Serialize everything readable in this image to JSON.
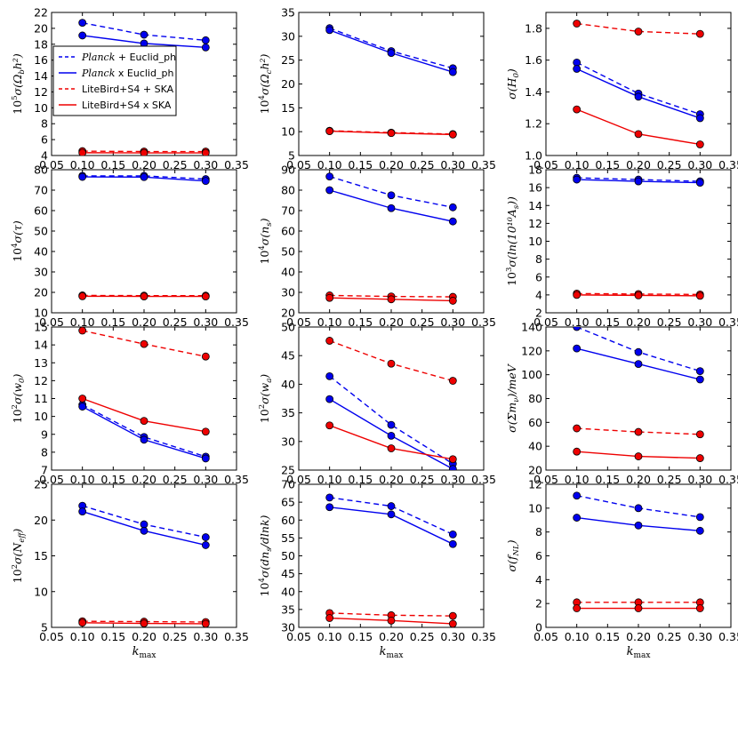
{
  "legend": {
    "entries": [
      {
        "label": "Planck + Euclid_ph",
        "italic_prefix": "Planck",
        "suffix": " + Euclid_ph",
        "style": "dashed",
        "color": "#0000ee"
      },
      {
        "label": "Planck x Euclid_ph",
        "italic_prefix": "Planck",
        "suffix": " x Euclid_ph",
        "style": "solid",
        "color": "#0000ee"
      },
      {
        "label": "LiteBird+S4 + SKA",
        "italic_prefix": "",
        "suffix": "LiteBird+S4 + SKA",
        "style": "dashed",
        "color": "#ee0000"
      },
      {
        "label": "LiteBird+S4 x SKA",
        "italic_prefix": "",
        "suffix": "LiteBird+S4 x SKA",
        "style": "solid",
        "color": "#ee0000"
      }
    ]
  },
  "colors": {
    "blue": "#0000ee",
    "red": "#ee0000",
    "marker_edge": "#000000"
  },
  "chart_data": [
    {
      "type": "line",
      "ylabel_prefix": "10",
      "ylabel_exp": "5",
      "ylabel_body": "σ(Ω",
      "ylabel_sub": "b",
      "ylabel_tail": "h²)",
      "xlabel": "k_max",
      "xlim": [
        0.05,
        0.35
      ],
      "ylim": [
        4,
        22
      ],
      "xticks": [
        "0.05",
        "0.10",
        "0.15",
        "0.20",
        "0.25",
        "0.30",
        "0.35"
      ],
      "yticks": [
        "4",
        "6",
        "8",
        "10",
        "12",
        "14",
        "16",
        "18",
        "20",
        "22"
      ],
      "ytick_values": [
        4,
        6,
        8,
        10,
        12,
        14,
        16,
        18,
        20,
        22
      ],
      "x": [
        0.1,
        0.2,
        0.3
      ],
      "series": [
        {
          "name": "Planck + Euclid_ph",
          "values": [
            20.7,
            19.2,
            18.5
          ]
        },
        {
          "name": "Planck x Euclid_ph",
          "values": [
            19.1,
            18.1,
            17.6
          ]
        },
        {
          "name": "LiteBird+S4 + SKA",
          "values": [
            4.55,
            4.5,
            4.5
          ]
        },
        {
          "name": "LiteBird+S4 x SKA",
          "values": [
            4.35,
            4.33,
            4.33
          ]
        }
      ]
    },
    {
      "type": "line",
      "ylabel_prefix": "10",
      "ylabel_exp": "4",
      "ylabel_body": "σ(Ω",
      "ylabel_sub": "c",
      "ylabel_tail": "h²)",
      "xlabel": "k_max",
      "xlim": [
        0.05,
        0.35
      ],
      "ylim": [
        5,
        35
      ],
      "xticks": [
        "0.05",
        "0.10",
        "0.15",
        "0.20",
        "0.25",
        "0.30",
        "0.35"
      ],
      "yticks": [
        "5",
        "10",
        "15",
        "20",
        "25",
        "30",
        "35"
      ],
      "ytick_values": [
        5,
        10,
        15,
        20,
        25,
        30,
        35
      ],
      "x": [
        0.1,
        0.2,
        0.3
      ],
      "series": [
        {
          "name": "Planck + Euclid_ph",
          "values": [
            31.7,
            26.9,
            23.3
          ]
        },
        {
          "name": "Planck x Euclid_ph",
          "values": [
            31.3,
            26.5,
            22.5
          ]
        },
        {
          "name": "LiteBird+S4 + SKA",
          "values": [
            10.2,
            9.8,
            9.5
          ]
        },
        {
          "name": "LiteBird+S4 x SKA",
          "values": [
            10.1,
            9.7,
            9.4
          ]
        }
      ]
    },
    {
      "type": "line",
      "ylabel_prefix": "",
      "ylabel_exp": "",
      "ylabel_body": "σ(H",
      "ylabel_sub": "0",
      "ylabel_tail": ")",
      "xlabel": "k_max",
      "xlim": [
        0.05,
        0.35
      ],
      "ylim": [
        1.0,
        1.9
      ],
      "xticks": [
        "0.05",
        "0.10",
        "0.15",
        "0.20",
        "0.25",
        "0.30",
        "0.35"
      ],
      "yticks": [
        "1.0",
        "1.2",
        "1.4",
        "1.6",
        "1.8"
      ],
      "ytick_values": [
        1.0,
        1.2,
        1.4,
        1.6,
        1.8
      ],
      "x": [
        0.1,
        0.2,
        0.3
      ],
      "series": [
        {
          "name": "Planck + Euclid_ph",
          "values": [
            1.585,
            1.39,
            1.26
          ]
        },
        {
          "name": "Planck x Euclid_ph",
          "values": [
            1.545,
            1.37,
            1.235
          ]
        },
        {
          "name": "LiteBird+S4 + SKA",
          "values": [
            1.83,
            1.78,
            1.765
          ]
        },
        {
          "name": "LiteBird+S4 x SKA",
          "values": [
            1.29,
            1.135,
            1.07
          ]
        }
      ]
    },
    {
      "type": "line",
      "ylabel_prefix": "10",
      "ylabel_exp": "4",
      "ylabel_body": "σ(τ)",
      "ylabel_sub": "",
      "ylabel_tail": "",
      "xlabel": "k_max",
      "xlim": [
        0.05,
        0.35
      ],
      "ylim": [
        10,
        80
      ],
      "xticks": [
        "0.05",
        "0.10",
        "0.15",
        "0.20",
        "0.25",
        "0.30",
        "0.35"
      ],
      "yticks": [
        "10",
        "20",
        "30",
        "40",
        "50",
        "60",
        "70",
        "80"
      ],
      "ytick_values": [
        10,
        20,
        30,
        40,
        50,
        60,
        70,
        80
      ],
      "x": [
        0.1,
        0.2,
        0.3
      ],
      "series": [
        {
          "name": "Planck + Euclid_ph",
          "values": [
            77.0,
            77.0,
            75.4
          ]
        },
        {
          "name": "Planck x Euclid_ph",
          "values": [
            76.5,
            76.4,
            74.5
          ]
        },
        {
          "name": "LiteBird+S4 + SKA",
          "values": [
            18.5,
            18.4,
            18.4
          ]
        },
        {
          "name": "LiteBird+S4 x SKA",
          "values": [
            18.1,
            18.0,
            18.0
          ]
        }
      ]
    },
    {
      "type": "line",
      "ylabel_prefix": "10",
      "ylabel_exp": "4",
      "ylabel_body": "σ(n",
      "ylabel_sub": "s",
      "ylabel_tail": ")",
      "xlabel": "k_max",
      "xlim": [
        0.05,
        0.35
      ],
      "ylim": [
        20,
        90
      ],
      "xticks": [
        "0.05",
        "0.10",
        "0.15",
        "0.20",
        "0.25",
        "0.30",
        "0.35"
      ],
      "yticks": [
        "20",
        "30",
        "40",
        "50",
        "60",
        "70",
        "80",
        "90"
      ],
      "ytick_values": [
        20,
        30,
        40,
        50,
        60,
        70,
        80,
        90
      ],
      "x": [
        0.1,
        0.2,
        0.3
      ],
      "series": [
        {
          "name": "Planck + Euclid_ph",
          "values": [
            86.7,
            77.5,
            71.6
          ]
        },
        {
          "name": "Planck x Euclid_ph",
          "values": [
            80.0,
            71.2,
            64.7
          ]
        },
        {
          "name": "LiteBird+S4 + SKA",
          "values": [
            28.5,
            28.0,
            27.8
          ]
        },
        {
          "name": "LiteBird+S4 x SKA",
          "values": [
            27.3,
            26.6,
            25.9
          ]
        }
      ]
    },
    {
      "type": "line",
      "ylabel_prefix": "10",
      "ylabel_exp": "3",
      "ylabel_body": "σ(ln(10¹⁰A",
      "ylabel_sub": "s",
      "ylabel_tail": "))",
      "xlabel": "k_max",
      "xlim": [
        0.05,
        0.35
      ],
      "ylim": [
        2,
        18
      ],
      "xticks": [
        "0.05",
        "0.10",
        "0.15",
        "0.20",
        "0.25",
        "0.30",
        "0.35"
      ],
      "yticks": [
        "2",
        "4",
        "6",
        "8",
        "10",
        "12",
        "14",
        "16",
        "18"
      ],
      "ytick_values": [
        2,
        4,
        6,
        8,
        10,
        12,
        14,
        16,
        18
      ],
      "x": [
        0.1,
        0.2,
        0.3
      ],
      "series": [
        {
          "name": "Planck + Euclid_ph",
          "values": [
            17.1,
            16.9,
            16.7
          ]
        },
        {
          "name": "Planck x Euclid_ph",
          "values": [
            16.9,
            16.7,
            16.55
          ]
        },
        {
          "name": "LiteBird+S4 + SKA",
          "values": [
            4.15,
            4.1,
            4.05
          ]
        },
        {
          "name": "LiteBird+S4 x SKA",
          "values": [
            4.0,
            3.95,
            3.9
          ]
        }
      ]
    },
    {
      "type": "line",
      "ylabel_prefix": "10",
      "ylabel_exp": "2",
      "ylabel_body": "σ(w",
      "ylabel_sub": "0",
      "ylabel_tail": ")",
      "xlabel": "k_max",
      "xlim": [
        0.05,
        0.35
      ],
      "ylim": [
        7,
        15
      ],
      "xticks": [
        "0.05",
        "0.10",
        "0.15",
        "0.20",
        "0.25",
        "0.30",
        "0.35"
      ],
      "yticks": [
        "7",
        "8",
        "9",
        "10",
        "11",
        "12",
        "13",
        "14",
        "15"
      ],
      "ytick_values": [
        7,
        8,
        9,
        10,
        11,
        12,
        13,
        14,
        15
      ],
      "x": [
        0.1,
        0.2,
        0.3
      ],
      "series": [
        {
          "name": "Planck + Euclid_ph",
          "values": [
            10.65,
            8.85,
            7.75
          ]
        },
        {
          "name": "Planck x Euclid_ph",
          "values": [
            10.55,
            8.7,
            7.65
          ]
        },
        {
          "name": "LiteBird+S4 + SKA",
          "values": [
            14.8,
            14.05,
            13.35
          ]
        },
        {
          "name": "LiteBird+S4 x SKA",
          "values": [
            11.0,
            9.75,
            9.15
          ]
        }
      ]
    },
    {
      "type": "line",
      "ylabel_prefix": "10",
      "ylabel_exp": "2",
      "ylabel_body": "σ(w",
      "ylabel_sub": "a",
      "ylabel_tail": ")",
      "xlabel": "k_max",
      "xlim": [
        0.05,
        0.35
      ],
      "ylim": [
        25,
        50
      ],
      "xticks": [
        "0.05",
        "0.10",
        "0.15",
        "0.20",
        "0.25",
        "0.30",
        "0.35"
      ],
      "yticks": [
        "25",
        "30",
        "35",
        "40",
        "45",
        "50"
      ],
      "ytick_values": [
        25,
        30,
        35,
        40,
        45,
        50
      ],
      "x": [
        0.1,
        0.2,
        0.3
      ],
      "series": [
        {
          "name": "Planck + Euclid_ph",
          "values": [
            41.4,
            32.9,
            26.1
          ]
        },
        {
          "name": "Planck x Euclid_ph",
          "values": [
            37.4,
            31.0,
            25.2
          ]
        },
        {
          "name": "LiteBird+S4 + SKA",
          "values": [
            47.6,
            43.6,
            40.6
          ]
        },
        {
          "name": "LiteBird+S4 x SKA",
          "values": [
            32.8,
            28.8,
            26.9
          ]
        }
      ]
    },
    {
      "type": "line",
      "ylabel_prefix": "",
      "ylabel_exp": "",
      "ylabel_body": "σ(Σm",
      "ylabel_sub": "ν",
      "ylabel_tail": ")/meV",
      "xlabel": "k_max",
      "xlim": [
        0.05,
        0.35
      ],
      "ylim": [
        20,
        140
      ],
      "xticks": [
        "0.05",
        "0.10",
        "0.15",
        "0.20",
        "0.25",
        "0.30",
        "0.35"
      ],
      "yticks": [
        "20",
        "40",
        "60",
        "80",
        "100",
        "120",
        "140"
      ],
      "ytick_values": [
        20,
        40,
        60,
        80,
        100,
        120,
        140
      ],
      "x": [
        0.1,
        0.2,
        0.3
      ],
      "series": [
        {
          "name": "Planck + Euclid_ph",
          "values": [
            140,
            119,
            103
          ]
        },
        {
          "name": "Planck x Euclid_ph",
          "values": [
            122,
            109,
            96
          ]
        },
        {
          "name": "LiteBird+S4 + SKA",
          "values": [
            55,
            52,
            50
          ]
        },
        {
          "name": "LiteBird+S4 x SKA",
          "values": [
            35.5,
            31.5,
            30
          ]
        }
      ]
    },
    {
      "type": "line",
      "ylabel_prefix": "10",
      "ylabel_exp": "2",
      "ylabel_body": "σ(N",
      "ylabel_sub": "eff",
      "ylabel_tail": ")",
      "xlabel": "k_max",
      "xlim": [
        0.05,
        0.35
      ],
      "ylim": [
        5,
        25
      ],
      "xticks": [
        "0.05",
        "0.10",
        "0.15",
        "0.20",
        "0.25",
        "0.30",
        "0.35"
      ],
      "yticks": [
        "5",
        "10",
        "15",
        "20",
        "25"
      ],
      "ytick_values": [
        5,
        10,
        15,
        20,
        25
      ],
      "x": [
        0.1,
        0.2,
        0.3
      ],
      "series": [
        {
          "name": "Planck + Euclid_ph",
          "values": [
            22.0,
            19.4,
            17.6
          ]
        },
        {
          "name": "Planck x Euclid_ph",
          "values": [
            21.2,
            18.5,
            16.5
          ]
        },
        {
          "name": "LiteBird+S4 + SKA",
          "values": [
            5.85,
            5.8,
            5.75
          ]
        },
        {
          "name": "LiteBird+S4 x SKA",
          "values": [
            5.65,
            5.55,
            5.5
          ]
        }
      ]
    },
    {
      "type": "line",
      "ylabel_prefix": "10",
      "ylabel_exp": "4",
      "ylabel_body": "σ(dn",
      "ylabel_sub": "s",
      "ylabel_tail": "/dlnk)",
      "xlabel": "k_max",
      "xlim": [
        0.05,
        0.35
      ],
      "ylim": [
        30,
        70
      ],
      "xticks": [
        "0.05",
        "0.10",
        "0.15",
        "0.20",
        "0.25",
        "0.30",
        "0.35"
      ],
      "yticks": [
        "30",
        "35",
        "40",
        "45",
        "50",
        "55",
        "60",
        "65",
        "70"
      ],
      "ytick_values": [
        30,
        35,
        40,
        45,
        50,
        55,
        60,
        65,
        70
      ],
      "x": [
        0.1,
        0.2,
        0.3
      ],
      "series": [
        {
          "name": "Planck + Euclid_ph",
          "values": [
            66.3,
            63.9,
            56.0
          ]
        },
        {
          "name": "Planck x Euclid_ph",
          "values": [
            63.6,
            61.6,
            53.3
          ]
        },
        {
          "name": "LiteBird+S4 + SKA",
          "values": [
            34.0,
            33.4,
            33.2
          ]
        },
        {
          "name": "LiteBird+S4 x SKA",
          "values": [
            32.6,
            31.9,
            31.0
          ]
        }
      ]
    },
    {
      "type": "line",
      "ylabel_prefix": "",
      "ylabel_exp": "",
      "ylabel_body": "σ(f",
      "ylabel_sub": "NL",
      "ylabel_tail": ")",
      "xlabel": "k_max",
      "xlim": [
        0.05,
        0.35
      ],
      "ylim": [
        0,
        12
      ],
      "xticks": [
        "0.05",
        "0.10",
        "0.15",
        "0.20",
        "0.25",
        "0.30",
        "0.35"
      ],
      "yticks": [
        "0",
        "2",
        "4",
        "6",
        "8",
        "10",
        "12"
      ],
      "ytick_values": [
        0,
        2,
        4,
        6,
        8,
        10,
        12
      ],
      "x": [
        0.1,
        0.2,
        0.3
      ],
      "series": [
        {
          "name": "Planck + Euclid_ph",
          "values": [
            11.05,
            10.0,
            9.25
          ]
        },
        {
          "name": "Planck x Euclid_ph",
          "values": [
            9.2,
            8.55,
            8.1
          ]
        },
        {
          "name": "LiteBird+S4 + SKA",
          "values": [
            2.1,
            2.1,
            2.1
          ]
        },
        {
          "name": "LiteBird+S4 x SKA",
          "values": [
            1.6,
            1.6,
            1.6
          ]
        }
      ]
    }
  ]
}
